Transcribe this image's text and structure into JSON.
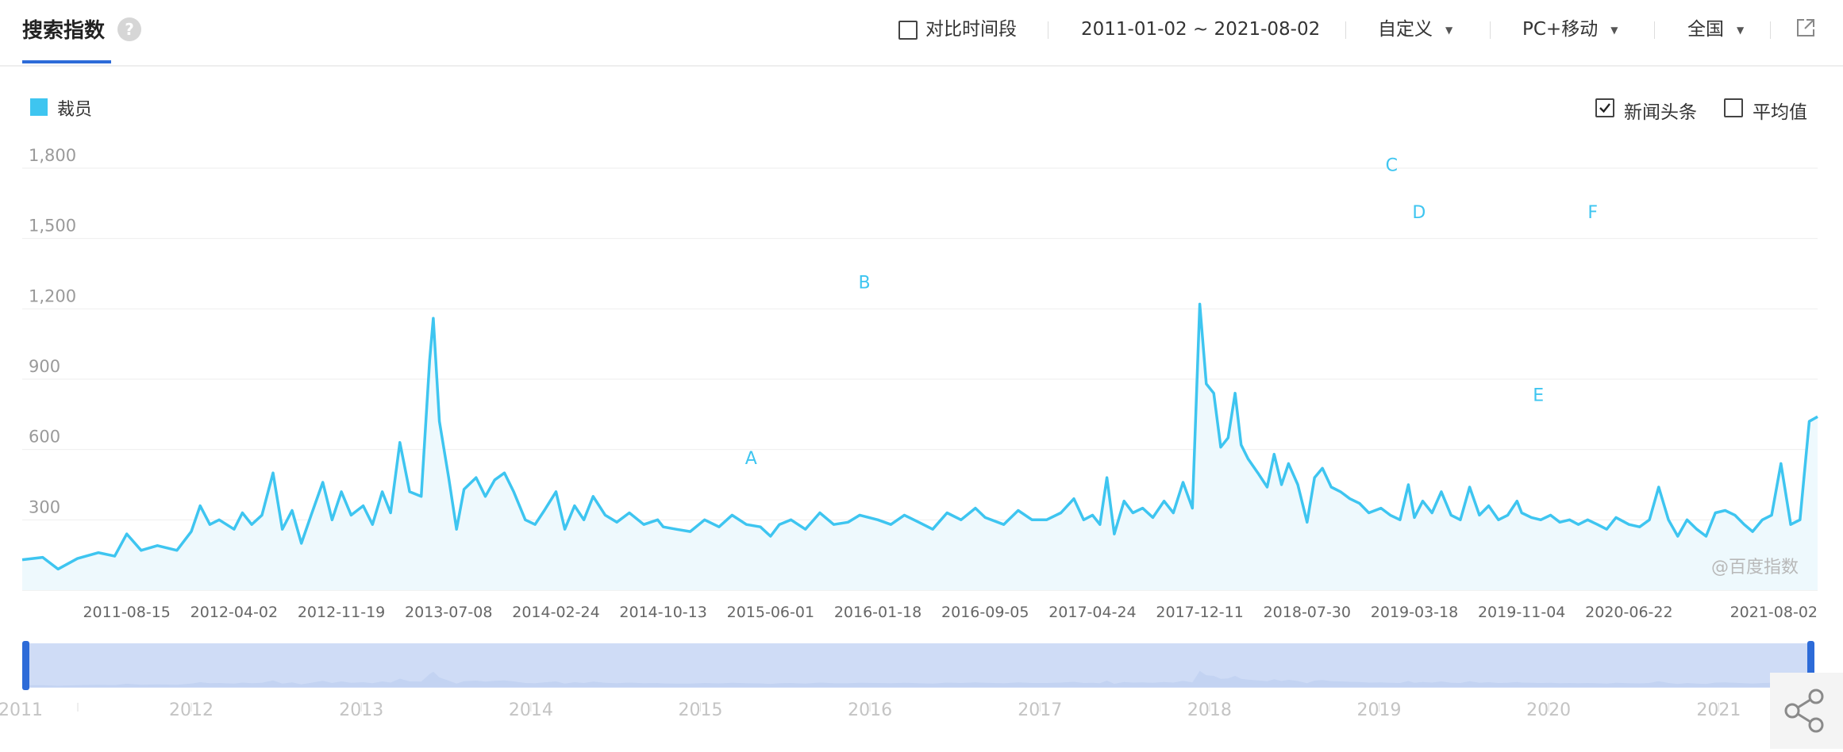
{
  "header": {
    "title": "搜索指数",
    "help_icon": "?",
    "compare_label": "对比时间段",
    "date_range": "2011-01-02 ~ 2021-08-02",
    "mode": "自定义",
    "device": "PC+移动",
    "region": "全国"
  },
  "legend": {
    "series_label": "裁员",
    "color": "#3ec5f0"
  },
  "options": {
    "news_label": "新闻头条",
    "news_checked": true,
    "avg_label": "平均值",
    "avg_checked": false
  },
  "watermark": "@百度指数",
  "chart_data": {
    "type": "area",
    "series": [
      {
        "name": "裁员",
        "color": "#3ec5f0",
        "points": [
          [
            "2011-01-02",
            130
          ],
          [
            "2011-02-15",
            140
          ],
          [
            "2011-03-20",
            90
          ],
          [
            "2011-05-01",
            135
          ],
          [
            "2011-06-15",
            160
          ],
          [
            "2011-07-20",
            145
          ],
          [
            "2011-08-15",
            240
          ],
          [
            "2011-09-15",
            170
          ],
          [
            "2011-10-20",
            190
          ],
          [
            "2011-12-01",
            170
          ],
          [
            "2012-01-01",
            250
          ],
          [
            "2012-01-20",
            360
          ],
          [
            "2012-02-10",
            280
          ],
          [
            "2012-03-01",
            300
          ],
          [
            "2012-04-02",
            260
          ],
          [
            "2012-04-20",
            330
          ],
          [
            "2012-05-10",
            280
          ],
          [
            "2012-06-01",
            320
          ],
          [
            "2012-06-25",
            500
          ],
          [
            "2012-07-15",
            260
          ],
          [
            "2012-08-05",
            340
          ],
          [
            "2012-08-25",
            200
          ],
          [
            "2012-09-15",
            320
          ],
          [
            "2012-10-10",
            460
          ],
          [
            "2012-10-30",
            300
          ],
          [
            "2012-11-19",
            420
          ],
          [
            "2012-12-10",
            320
          ],
          [
            "2013-01-05",
            360
          ],
          [
            "2013-01-25",
            280
          ],
          [
            "2013-02-15",
            420
          ],
          [
            "2013-03-05",
            330
          ],
          [
            "2013-03-25",
            630
          ],
          [
            "2013-04-15",
            420
          ],
          [
            "2013-05-10",
            400
          ],
          [
            "2013-05-28",
            980
          ],
          [
            "2013-06-05",
            1160
          ],
          [
            "2013-06-18",
            720
          ],
          [
            "2013-07-08",
            480
          ],
          [
            "2013-07-25",
            260
          ],
          [
            "2013-08-10",
            430
          ],
          [
            "2013-09-05",
            480
          ],
          [
            "2013-09-25",
            400
          ],
          [
            "2013-10-15",
            470
          ],
          [
            "2013-11-05",
            500
          ],
          [
            "2013-11-25",
            420
          ],
          [
            "2013-12-20",
            300
          ],
          [
            "2014-01-10",
            280
          ],
          [
            "2014-01-30",
            340
          ],
          [
            "2014-02-24",
            420
          ],
          [
            "2014-03-15",
            260
          ],
          [
            "2014-04-05",
            360
          ],
          [
            "2014-04-25",
            300
          ],
          [
            "2014-05-15",
            400
          ],
          [
            "2014-06-10",
            320
          ],
          [
            "2014-07-05",
            290
          ],
          [
            "2014-08-01",
            330
          ],
          [
            "2014-09-01",
            280
          ],
          [
            "2014-10-01",
            300
          ],
          [
            "2014-10-13",
            270
          ],
          [
            "2014-11-10",
            260
          ],
          [
            "2014-12-10",
            250
          ],
          [
            "2015-01-10",
            300
          ],
          [
            "2015-02-10",
            270
          ],
          [
            "2015-03-10",
            320
          ],
          [
            "2015-04-10",
            280
          ],
          [
            "2015-05-10",
            270
          ],
          [
            "2015-06-01",
            230
          ],
          [
            "2015-06-20",
            280
          ],
          [
            "2015-07-15",
            300
          ],
          [
            "2015-08-15",
            260
          ],
          [
            "2015-09-15",
            330
          ],
          [
            "2015-10-15",
            280
          ],
          [
            "2015-11-15",
            290
          ],
          [
            "2015-12-10",
            320
          ],
          [
            "2016-01-18",
            300
          ],
          [
            "2016-02-15",
            280
          ],
          [
            "2016-03-15",
            320
          ],
          [
            "2016-04-15",
            290
          ],
          [
            "2016-05-15",
            260
          ],
          [
            "2016-06-15",
            330
          ],
          [
            "2016-07-15",
            300
          ],
          [
            "2016-08-15",
            350
          ],
          [
            "2016-09-05",
            310
          ],
          [
            "2016-10-15",
            280
          ],
          [
            "2016-11-15",
            340
          ],
          [
            "2016-12-15",
            300
          ],
          [
            "2017-01-15",
            300
          ],
          [
            "2017-02-15",
            330
          ],
          [
            "2017-03-15",
            390
          ],
          [
            "2017-04-05",
            300
          ],
          [
            "2017-04-24",
            320
          ],
          [
            "2017-05-10",
            280
          ],
          [
            "2017-05-25",
            480
          ],
          [
            "2017-06-10",
            240
          ],
          [
            "2017-07-01",
            380
          ],
          [
            "2017-07-20",
            330
          ],
          [
            "2017-08-10",
            350
          ],
          [
            "2017-09-01",
            310
          ],
          [
            "2017-09-25",
            380
          ],
          [
            "2017-10-15",
            330
          ],
          [
            "2017-11-05",
            460
          ],
          [
            "2017-11-25",
            350
          ],
          [
            "2017-12-11",
            1220
          ],
          [
            "2017-12-25",
            880
          ],
          [
            "2018-01-10",
            840
          ],
          [
            "2018-01-25",
            610
          ],
          [
            "2018-02-10",
            650
          ],
          [
            "2018-02-25",
            840
          ],
          [
            "2018-03-10",
            620
          ],
          [
            "2018-03-25",
            560
          ],
          [
            "2018-04-15",
            500
          ],
          [
            "2018-05-05",
            440
          ],
          [
            "2018-05-20",
            580
          ],
          [
            "2018-06-05",
            450
          ],
          [
            "2018-06-20",
            540
          ],
          [
            "2018-07-10",
            450
          ],
          [
            "2018-07-30",
            290
          ],
          [
            "2018-08-15",
            480
          ],
          [
            "2018-09-01",
            520
          ],
          [
            "2018-09-20",
            440
          ],
          [
            "2018-10-10",
            420
          ],
          [
            "2018-10-30",
            390
          ],
          [
            "2018-11-20",
            370
          ],
          [
            "2018-12-10",
            330
          ],
          [
            "2019-01-05",
            350
          ],
          [
            "2019-01-25",
            320
          ],
          [
            "2019-02-15",
            300
          ],
          [
            "2019-03-05",
            450
          ],
          [
            "2019-03-18",
            310
          ],
          [
            "2019-04-05",
            380
          ],
          [
            "2019-04-25",
            330
          ],
          [
            "2019-05-15",
            420
          ],
          [
            "2019-06-05",
            320
          ],
          [
            "2019-06-25",
            300
          ],
          [
            "2019-07-15",
            440
          ],
          [
            "2019-08-05",
            320
          ],
          [
            "2019-08-25",
            360
          ],
          [
            "2019-09-15",
            300
          ],
          [
            "2019-10-05",
            320
          ],
          [
            "2019-10-25",
            380
          ],
          [
            "2019-11-04",
            330
          ],
          [
            "2019-11-25",
            310
          ],
          [
            "2019-12-15",
            300
          ],
          [
            "2020-01-05",
            320
          ],
          [
            "2020-01-25",
            290
          ],
          [
            "2020-02-15",
            300
          ],
          [
            "2020-03-05",
            280
          ],
          [
            "2020-03-25",
            300
          ],
          [
            "2020-04-15",
            280
          ],
          [
            "2020-05-05",
            260
          ],
          [
            "2020-05-25",
            310
          ],
          [
            "2020-06-22",
            280
          ],
          [
            "2020-07-15",
            270
          ],
          [
            "2020-08-05",
            300
          ],
          [
            "2020-08-25",
            440
          ],
          [
            "2020-09-15",
            300
          ],
          [
            "2020-10-05",
            230
          ],
          [
            "2020-10-25",
            300
          ],
          [
            "2020-11-15",
            260
          ],
          [
            "2020-12-05",
            230
          ],
          [
            "2020-12-25",
            330
          ],
          [
            "2021-01-15",
            340
          ],
          [
            "2021-02-05",
            320
          ],
          [
            "2021-02-25",
            280
          ],
          [
            "2021-03-15",
            250
          ],
          [
            "2021-04-05",
            300
          ],
          [
            "2021-04-25",
            320
          ],
          [
            "2021-05-15",
            540
          ],
          [
            "2021-06-05",
            280
          ],
          [
            "2021-06-25",
            300
          ],
          [
            "2021-07-15",
            720
          ],
          [
            "2021-08-02",
            740
          ]
        ]
      }
    ],
    "ylim": [
      0,
      1800
    ],
    "yticks": [
      300,
      600,
      900,
      1200,
      1500,
      1800
    ],
    "ytick_labels": [
      "300",
      "600",
      "900",
      "1,200",
      "1,500",
      "1,800"
    ],
    "xlim": [
      "2011-01-02",
      "2021-08-02"
    ],
    "xticks": [
      "2011-08-15",
      "2012-04-02",
      "2012-11-19",
      "2013-07-08",
      "2014-02-24",
      "2014-10-13",
      "2015-06-01",
      "2016-01-18",
      "2016-09-05",
      "2017-04-24",
      "2017-12-11",
      "2018-07-30",
      "2019-03-18",
      "2019-11-04",
      "2020-06-22",
      "2021-08-02"
    ],
    "annotations": [
      {
        "label": "A",
        "x": "2015-04-20",
        "y": 470
      },
      {
        "label": "B",
        "x": "2015-12-20",
        "y": 1220
      },
      {
        "label": "C",
        "x": "2019-01-28",
        "y": 1720
      },
      {
        "label": "D",
        "x": "2019-03-28",
        "y": 1520
      },
      {
        "label": "E",
        "x": "2019-12-10",
        "y": 740
      },
      {
        "label": "F",
        "x": "2020-04-05",
        "y": 1520
      }
    ],
    "grid": true,
    "overview_years": [
      "2011",
      "2012",
      "2013",
      "2014",
      "2015",
      "2016",
      "2017",
      "2018",
      "2019",
      "2020",
      "2021"
    ]
  }
}
